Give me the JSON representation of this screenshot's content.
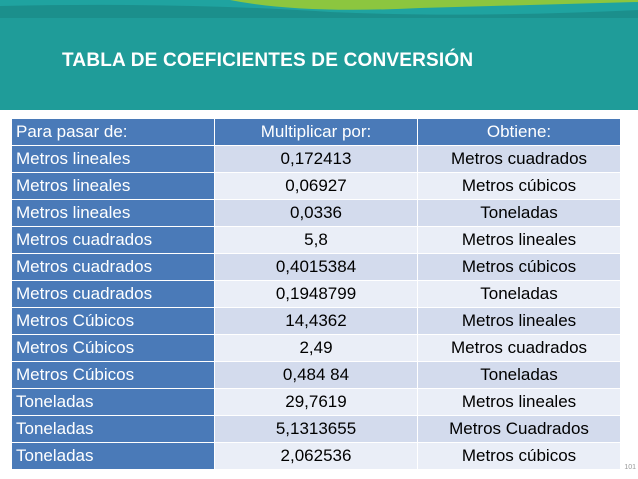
{
  "title": "TABLA DE COEFICIENTES DE CONVERSIÓN",
  "page_number": "101",
  "table": {
    "headers": [
      "Para pasar de:",
      "Multiplicar por:",
      "Obtiene:"
    ],
    "rows": [
      [
        "Metros lineales",
        "0,172413",
        "Metros cuadrados"
      ],
      [
        "Metros lineales",
        "0,06927",
        "Metros cúbicos"
      ],
      [
        "Metros lineales",
        "0,0336",
        "Toneladas"
      ],
      [
        "Metros cuadrados",
        "5,8",
        "Metros lineales"
      ],
      [
        "Metros cuadrados",
        "0,4015384",
        "Metros cúbicos"
      ],
      [
        "Metros cuadrados",
        "0,1948799",
        "Toneladas"
      ],
      [
        "Metros Cúbicos",
        "14,4362",
        "Metros lineales"
      ],
      [
        "Metros Cúbicos",
        "2,49",
        "Metros cuadrados"
      ],
      [
        "Metros Cúbicos",
        "0,484 84",
        "Toneladas"
      ],
      [
        "Toneladas",
        "29,7619",
        "Metros lineales"
      ],
      [
        "Toneladas",
        "5,1313655",
        "Metros Cuadrados"
      ],
      [
        "Toneladas",
        "2,062536",
        "Metros cúbicos"
      ]
    ]
  },
  "colors": {
    "teal_band": "#1f9c99",
    "stripe_green": "#8cc63f",
    "header_blue": "#4a7ab8",
    "row_dark": "#d3dbed",
    "row_light": "#eaeef7"
  }
}
